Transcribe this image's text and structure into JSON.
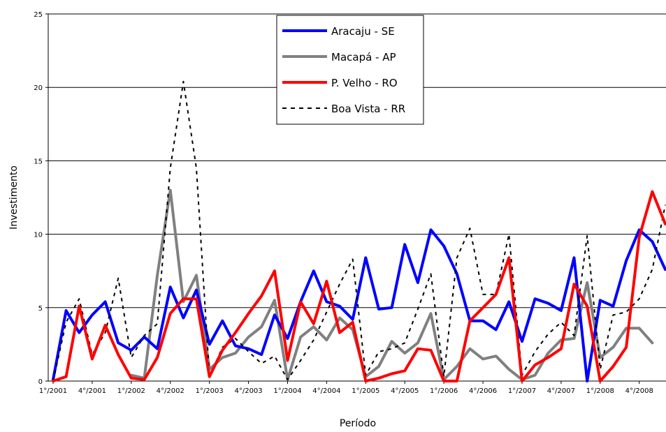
{
  "chart_data": {
    "type": "line",
    "title": "",
    "xlabel": "Período",
    "ylabel": "Investimento",
    "ylim": [
      0,
      25
    ],
    "yticks": [
      0,
      5,
      10,
      15,
      20,
      25
    ],
    "grid": "horizontal",
    "legend_position": "top-center",
    "x_tick_labels": [
      "1°/2001",
      "4°/2001",
      "1°/2002",
      "4°/2002",
      "1°/2003",
      "4°/2003",
      "1°/2004",
      "4°/2004",
      "1°/2005",
      "4°/2005",
      "1°/2006",
      "4°/2006",
      "1°/2007",
      "4°/2007",
      "1°/2008",
      "4°/2008"
    ],
    "x_tick_label_positions": [
      0,
      3,
      6,
      9,
      12,
      15,
      18,
      21,
      24,
      27,
      30,
      33,
      36,
      39,
      42,
      45
    ],
    "x_domain": [
      0,
      47
    ],
    "series": [
      {
        "name": "Aracaju - SE",
        "color": "#0000ff",
        "style": "solid",
        "values": [
          0.1,
          4.8,
          3.3,
          4.5,
          5.4,
          2.6,
          2.1,
          3.0,
          2.2,
          6.4,
          4.3,
          6.2,
          2.5,
          4.1,
          2.4,
          2.2,
          1.8,
          4.5,
          2.9,
          5.4,
          7.5,
          5.4,
          5.1,
          4.2,
          8.4,
          4.9,
          5.0,
          9.3,
          6.7,
          10.3,
          9.2,
          7.3,
          4.1,
          4.1,
          3.5,
          5.4,
          2.7,
          5.6,
          5.3,
          4.8,
          8.4,
          0.0,
          5.5,
          5.1,
          8.2,
          10.3,
          9.5,
          7.6
        ]
      },
      {
        "name": "Macapá - AP",
        "color": "#808080",
        "style": "solid",
        "values": [
          null,
          null,
          null,
          null,
          null,
          null,
          0.4,
          0.2,
          7.2,
          13.0,
          5.4,
          7.2,
          0.8,
          1.6,
          1.9,
          3.0,
          3.7,
          5.5,
          0.1,
          3.0,
          3.7,
          2.8,
          4.3,
          3.5,
          0.3,
          1.0,
          2.7,
          1.9,
          2.6,
          4.6,
          0.1,
          1.0,
          2.2,
          1.5,
          1.7,
          0.8,
          0.1,
          0.4,
          1.9,
          2.8,
          2.9,
          6.7,
          1.6,
          2.3,
          3.6,
          3.6,
          2.6,
          null
        ]
      },
      {
        "name": "P. Velho - RO",
        "color": "#ff0000",
        "style": "solid",
        "values": [
          0.0,
          0.3,
          5.1,
          1.5,
          3.8,
          1.8,
          0.2,
          0.1,
          1.6,
          4.6,
          5.6,
          5.6,
          0.3,
          2.1,
          3.3,
          4.6,
          5.8,
          7.5,
          1.4,
          5.4,
          3.9,
          6.8,
          3.3,
          4.0,
          0.0,
          0.2,
          0.5,
          0.7,
          2.2,
          2.1,
          0.0,
          0.0,
          4.1,
          5.0,
          5.9,
          8.4,
          0.0,
          1.1,
          1.6,
          2.2,
          6.6,
          5.1,
          0.0,
          1.0,
          2.3,
          9.8,
          12.9,
          10.7
        ]
      },
      {
        "name": "Boa Vista - RR",
        "color": "#000000",
        "style": "dashed",
        "values": [
          0.0,
          4.0,
          5.6,
          1.8,
          3.3,
          7.0,
          1.6,
          3.1,
          3.9,
          14.5,
          20.4,
          14.5,
          0.3,
          2.3,
          2.9,
          2.0,
          1.2,
          1.7,
          0.1,
          1.4,
          2.8,
          4.7,
          6.6,
          8.3,
          0.4,
          2.0,
          2.2,
          2.6,
          4.9,
          7.3,
          0.3,
          8.4,
          10.4,
          5.9,
          5.9,
          10.0,
          0.4,
          2.0,
          3.2,
          4.0,
          3.1,
          9.9,
          0.8,
          4.5,
          4.7,
          5.6,
          7.6,
          12.0
        ]
      }
    ]
  }
}
